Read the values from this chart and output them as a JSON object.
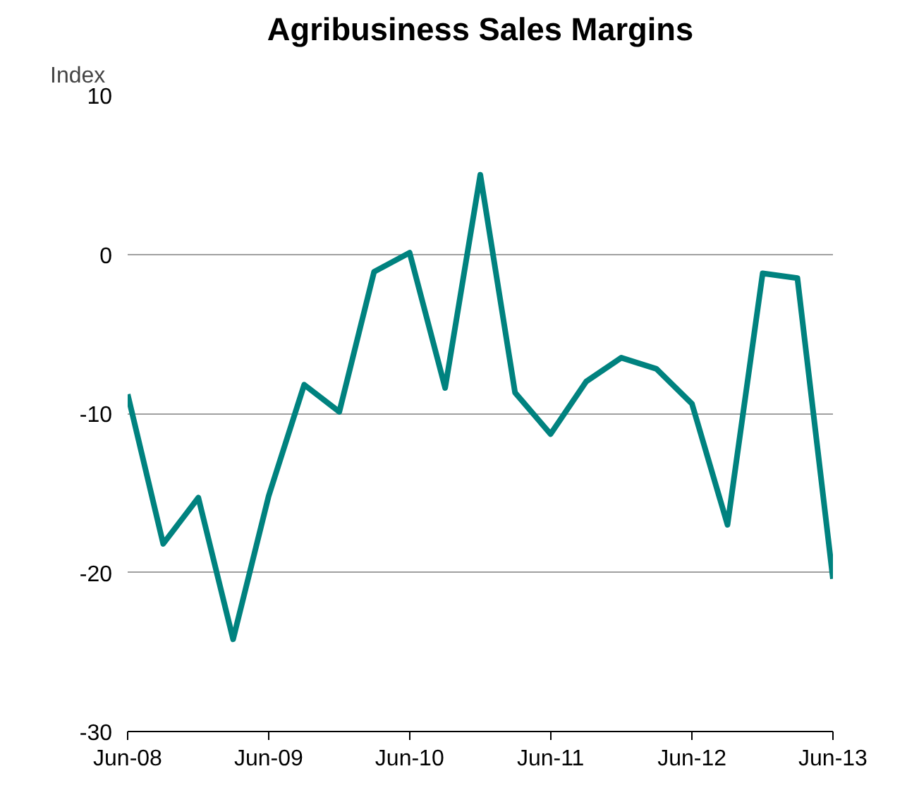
{
  "chart_data": {
    "type": "line",
    "title": "Agribusiness Sales Margins",
    "ylabel": "Index",
    "x": [
      "2008-06",
      "2008-09",
      "2008-12",
      "2009-03",
      "2009-06",
      "2009-09",
      "2009-12",
      "2010-03",
      "2010-06",
      "2010-09",
      "2010-12",
      "2011-03",
      "2011-06",
      "2011-09",
      "2011-12",
      "2012-03",
      "2012-06",
      "2012-09",
      "2012-12",
      "2013-03",
      "2013-06"
    ],
    "series": [
      {
        "color": "#00827f",
        "values": [
          -8.8,
          -18.2,
          -15.3,
          -24.2,
          -15.2,
          -8.2,
          -9.9,
          -1.1,
          0.1,
          -8.4,
          5,
          -8.7,
          -11.3,
          -8.0,
          -6.5,
          -7.2,
          -9.4,
          -17,
          -1.2,
          -1.5,
          -20.4
        ]
      }
    ],
    "xlim": [
      "2008-06",
      "2013-06"
    ],
    "xticks": [
      {
        "value": "2008-06",
        "label": "Jun-08"
      },
      {
        "value": "2009-06",
        "label": "Jun-09"
      },
      {
        "value": "2010-06",
        "label": "Jun-10"
      },
      {
        "value": "2011-06",
        "label": "Jun-11"
      },
      {
        "value": "2012-06",
        "label": "Jun-12"
      },
      {
        "value": "2013-06",
        "label": "Jun-13"
      }
    ],
    "ylim": [
      -30,
      10
    ],
    "yticks": [
      -30,
      -20,
      -10,
      0,
      10
    ],
    "grid": "y",
    "marker": "none",
    "line_style": "solid"
  }
}
